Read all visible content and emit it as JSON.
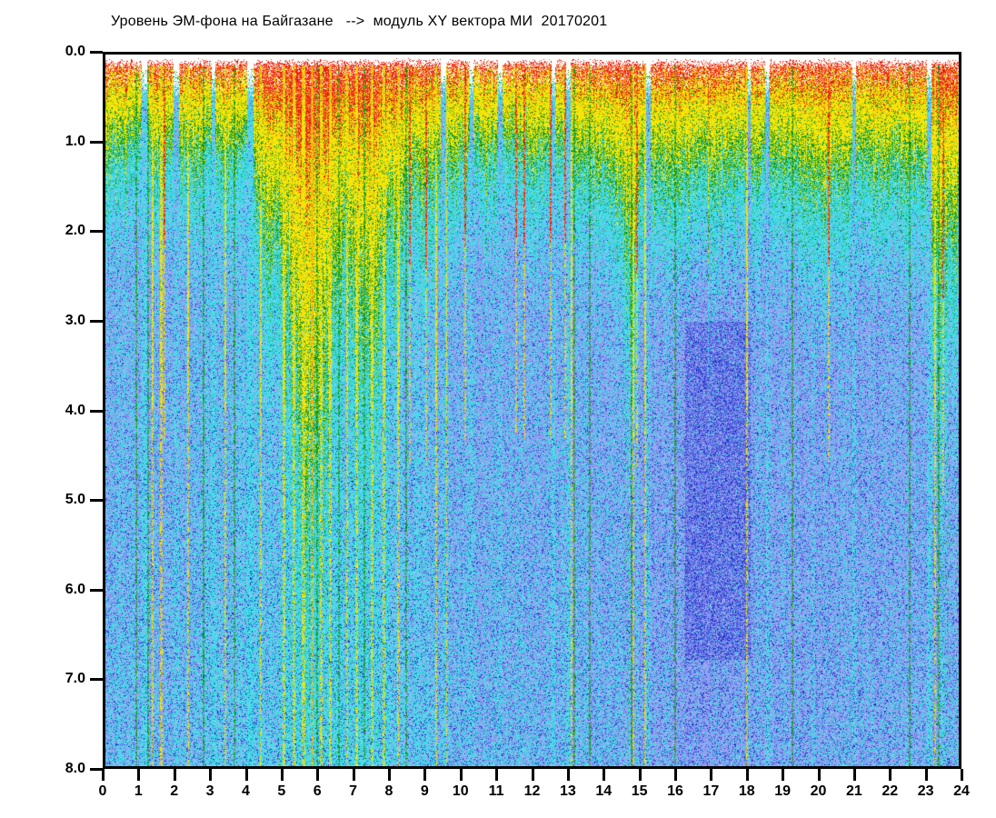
{
  "chart_data": {
    "type": "heatmap",
    "title": "Уровень ЭМ-фона на Байгазане   -->  модуль XY вектора МИ  20170201",
    "station": "Байгазане",
    "quantity": "модуль XY вектора МИ",
    "date": "20170201",
    "x_range": [
      0,
      24
    ],
    "y_range": [
      0.0,
      8.0
    ],
    "x_ticks": [
      "0",
      "1",
      "2",
      "3",
      "4",
      "5",
      "6",
      "7",
      "8",
      "9",
      "10",
      "11",
      "12",
      "13",
      "14",
      "15",
      "16",
      "17",
      "18",
      "19",
      "20",
      "21",
      "22",
      "23",
      "24"
    ],
    "y_ticks": [
      "0.0",
      "1.0",
      "2.0",
      "3.0",
      "4.0",
      "5.0",
      "6.0",
      "7.0",
      "8.0"
    ],
    "grid": false,
    "legend": "none",
    "palette": {
      "background": "#ffffff",
      "frame": "#000000",
      "text": "#000000",
      "red": [
        "#e01000",
        "#ee2b12",
        "#fb4a30"
      ],
      "orange": [
        "#fe9b0e",
        "#f0a83c"
      ],
      "yellow": [
        "#f4ec00",
        "#ffe60a",
        "#e6da14"
      ],
      "green": [
        "#1ba01b",
        "#2cb32c",
        "#0f870f"
      ],
      "cyan": [
        "#35dfe8",
        "#4fd9e8",
        "#27cfdc",
        "#6cdcea"
      ],
      "periwinkle": [
        "#8a92ec",
        "#96a0f2",
        "#7e88ea",
        "#a2aaf5"
      ],
      "periwinkle_dark": [
        "#6a76e6",
        "#5e6ae0"
      ],
      "dark_blue": [
        "#2433cc",
        "#1a29b4",
        "#2f3fde"
      ],
      "white": "#ffffff"
    },
    "seed": 20170201,
    "envelope_quarter_hour": [
      1.7,
      1.55,
      1.6,
      1.45,
      1.4,
      1.55,
      1.65,
      1.55,
      1.5,
      1.65,
      1.75,
      1.55,
      1.45,
      1.65,
      1.8,
      1.55,
      1.5,
      2.2,
      2.8,
      2.6,
      3.2,
      3.8,
      5.2,
      6.5,
      5.8,
      4.6,
      3.4,
      2.9,
      3.3,
      3.9,
      4.4,
      3.6,
      2.9,
      2.6,
      2.3,
      2.1,
      2.3,
      2.1,
      1.9,
      1.8,
      1.7,
      1.6,
      1.55,
      1.65,
      1.6,
      1.5,
      1.4,
      1.55,
      1.65,
      1.65,
      1.55,
      1.5,
      1.6,
      1.7,
      1.65,
      1.75,
      1.85,
      1.95,
      2.6,
      3.1,
      2.2,
      1.8,
      1.9,
      1.95,
      2.0,
      1.95,
      1.85,
      1.9,
      2.0,
      1.95,
      1.85,
      1.8,
      1.75,
      1.85,
      1.75,
      1.8,
      1.9,
      1.95,
      1.9,
      2.05,
      2.2,
      2.3,
      2.1,
      1.95,
      1.85,
      1.8,
      1.85,
      1.95,
      1.8,
      1.85,
      1.95,
      1.8,
      2.0,
      2.7,
      3.2,
      2.9,
      2.5
    ],
    "deep_background_hourly": [
      0.26,
      0.25,
      0.24,
      0.29,
      0.31,
      0.33,
      0.33,
      0.32,
      0.31,
      0.29,
      0.25,
      0.24,
      0.23,
      0.25,
      0.23,
      0.22,
      0.18,
      0.16,
      0.19,
      0.21,
      0.21,
      0.21,
      0.22,
      0.23,
      0.23
    ],
    "quiet_blob": {
      "h0": 16.3,
      "h1": 18.15,
      "d0": 3.0,
      "d1": 6.8
    },
    "streaks": [
      [
        0.85,
        "green",
        2
      ],
      [
        1.08,
        "notch",
        6
      ],
      [
        1.18,
        "green",
        2
      ],
      [
        1.32,
        "yellow",
        2
      ],
      [
        1.55,
        "yellow",
        3
      ],
      [
        1.66,
        "red",
        2
      ],
      [
        1.98,
        "notch",
        6
      ],
      [
        2.32,
        "yellow",
        2
      ],
      [
        2.75,
        "green",
        2
      ],
      [
        3.02,
        "notch",
        4
      ],
      [
        3.35,
        "yellow",
        2
      ],
      [
        3.62,
        "green",
        2
      ],
      [
        4.06,
        "notch",
        7
      ],
      [
        4.35,
        "yellow",
        2
      ],
      [
        5.02,
        "yellow",
        3
      ],
      [
        5.3,
        "yellow",
        3
      ],
      [
        5.57,
        "yellow",
        4
      ],
      [
        5.8,
        "orange",
        3
      ],
      [
        5.95,
        "green",
        2
      ],
      [
        6.07,
        "yellow",
        3
      ],
      [
        6.32,
        "yellow",
        3
      ],
      [
        6.55,
        "green",
        2
      ],
      [
        6.78,
        "yellow",
        2
      ],
      [
        7.05,
        "yellow",
        3
      ],
      [
        7.28,
        "green",
        2
      ],
      [
        7.5,
        "yellow",
        3
      ],
      [
        7.83,
        "yellow",
        3
      ],
      [
        8.22,
        "yellow",
        3
      ],
      [
        8.45,
        "green",
        2
      ],
      [
        8.55,
        "red",
        2
      ],
      [
        9.0,
        "red",
        2
      ],
      [
        9.3,
        "yellow",
        2
      ],
      [
        9.5,
        "notch",
        6
      ],
      [
        9.56,
        "yellow",
        2
      ],
      [
        10.1,
        "red",
        2
      ],
      [
        10.3,
        "notch",
        4
      ],
      [
        11.1,
        "notch",
        5
      ],
      [
        11.55,
        "red",
        2
      ],
      [
        11.78,
        "red",
        2
      ],
      [
        12.5,
        "red",
        2
      ],
      [
        12.6,
        "notch",
        4
      ],
      [
        12.92,
        "red",
        2
      ],
      [
        13.02,
        "notch",
        5
      ],
      [
        13.1,
        "yellow",
        2
      ],
      [
        13.17,
        "green",
        2
      ],
      [
        13.62,
        "green",
        2
      ],
      [
        14.78,
        "green",
        2
      ],
      [
        14.82,
        "yellow",
        3
      ],
      [
        14.95,
        "red",
        2
      ],
      [
        15.18,
        "yellow",
        2
      ],
      [
        15.25,
        "notch",
        5
      ],
      [
        16.02,
        "green",
        2
      ],
      [
        18.02,
        "yellow",
        2
      ],
      [
        18.08,
        "notch",
        5
      ],
      [
        18.6,
        "notch",
        5
      ],
      [
        19.32,
        "green",
        2
      ],
      [
        20.32,
        "red",
        2
      ],
      [
        21.05,
        "notch",
        4
      ],
      [
        22.6,
        "green",
        2
      ],
      [
        23.15,
        "notch",
        5
      ],
      [
        23.32,
        "yellow",
        2
      ],
      [
        23.42,
        "green",
        2
      ],
      [
        23.55,
        "red",
        2
      ]
    ]
  }
}
